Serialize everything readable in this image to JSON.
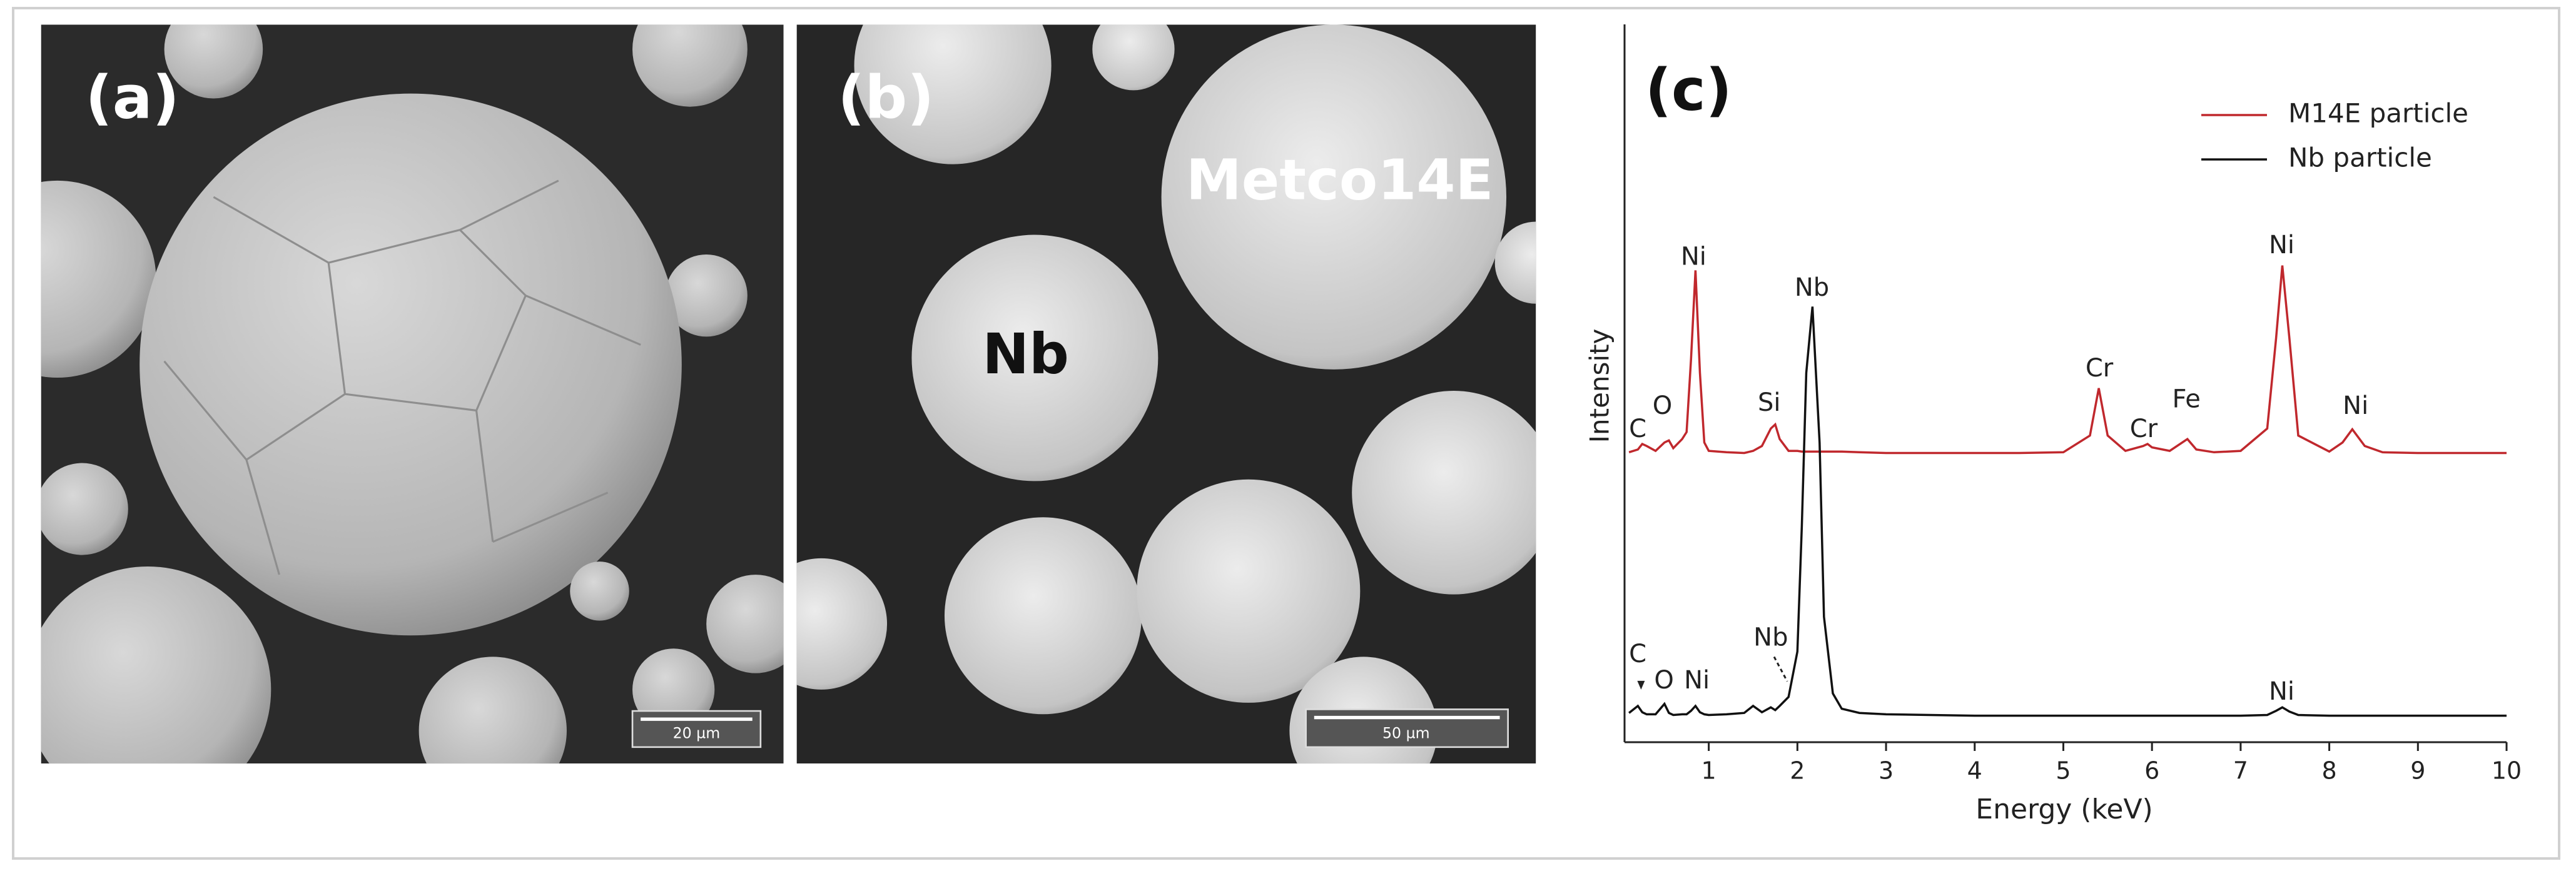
{
  "panels": {
    "a": {
      "label": "(a)",
      "scale_bar": "20 µm"
    },
    "b": {
      "label": "(b)",
      "scale_bar": "50 µm",
      "labels": [
        "Nb",
        "Metco14E"
      ]
    }
  },
  "chart_data": {
    "type": "line",
    "panel_label": "(c)",
    "x_label": "Energy (keV)",
    "y_label": "Intensity",
    "xlim": [
      0.05,
      10
    ],
    "xticks": [
      1,
      2,
      3,
      4,
      5,
      6,
      7,
      8,
      9,
      10
    ],
    "ylim": [
      -3,
      100
    ],
    "legend": "top-right",
    "x": [
      0.1,
      0.2,
      0.25,
      0.3,
      0.4,
      0.5,
      0.55,
      0.6,
      0.7,
      0.75,
      0.8,
      0.85,
      0.9,
      0.95,
      1.0,
      1.2,
      1.4,
      1.5,
      1.6,
      1.7,
      1.75,
      1.8,
      1.9,
      2.0,
      2.05,
      2.1,
      2.17,
      2.25,
      2.3,
      2.4,
      2.5,
      2.7,
      3.0,
      3.5,
      4.0,
      4.5,
      5.0,
      5.3,
      5.4,
      5.5,
      5.7,
      5.9,
      5.95,
      6.0,
      6.2,
      6.4,
      6.5,
      6.7,
      7.0,
      7.3,
      7.4,
      7.47,
      7.55,
      7.65,
      8.0,
      8.15,
      8.26,
      8.4,
      8.6,
      9.0,
      9.5,
      10.0
    ],
    "series": [
      {
        "name": "M14E particle",
        "color": "#c0282d",
        "values": [
          38.6,
          39,
          39.8,
          39.5,
          38.8,
          40,
          40.3,
          39.2,
          40.5,
          41.5,
          52,
          64.7,
          50,
          40,
          38.8,
          38.6,
          38.5,
          38.8,
          39.5,
          42,
          42.6,
          40.5,
          38.8,
          38.8,
          38.7,
          38.7,
          38.7,
          38.7,
          38.7,
          38.7,
          38.7,
          38.6,
          38.5,
          38.5,
          38.5,
          38.5,
          38.6,
          41,
          47.8,
          41,
          38.8,
          39.5,
          39.8,
          39.3,
          38.8,
          40.5,
          39,
          38.6,
          38.8,
          42,
          55,
          65.4,
          55,
          41,
          38.7,
          40,
          41.9,
          39.5,
          38.6,
          38.5,
          38.5,
          38.5
        ]
      },
      {
        "name": "Nb particle",
        "color": "#111111",
        "values": [
          1.2,
          2.2,
          1.3,
          1,
          1,
          2.5,
          1.2,
          0.9,
          1,
          1,
          1.5,
          2.2,
          1.3,
          1,
          0.9,
          1,
          1.2,
          2.2,
          1.3,
          2,
          1.6,
          2.2,
          3.5,
          10,
          28,
          50,
          59.5,
          40,
          15,
          4,
          1.8,
          1.2,
          1,
          0.9,
          0.8,
          0.8,
          0.8,
          0.8,
          0.8,
          0.8,
          0.8,
          0.8,
          0.8,
          0.8,
          0.8,
          0.8,
          0.8,
          0.8,
          0.8,
          0.9,
          1.5,
          2,
          1.4,
          0.9,
          0.8,
          0.8,
          0.8,
          0.8,
          0.8,
          0.8,
          0.8,
          0.8
        ]
      }
    ],
    "annotations": [
      "C",
      "O",
      "Ni",
      "Si",
      "Cr",
      "Cr",
      "Fe",
      "Ni",
      "Ni",
      "Nb",
      "C",
      "O",
      "Ni",
      "Nb",
      "Ni"
    ]
  }
}
